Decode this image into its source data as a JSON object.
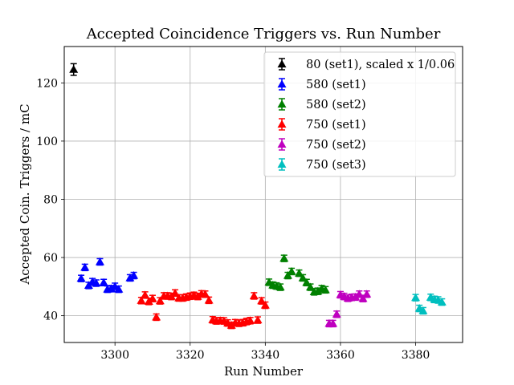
{
  "chart_data": {
    "type": "scatter",
    "title": "Accepted Coincidence Triggers vs. Run Number",
    "xlabel": "Run Number",
    "ylabel": "Accepted Coin. Triggers / mC",
    "xlim": [
      3286.5,
      3392.5
    ],
    "ylim": [
      30.8,
      132.5
    ],
    "xticks": [
      3300,
      3320,
      3340,
      3360,
      3380
    ],
    "yticks": [
      40,
      60,
      80,
      100,
      120
    ],
    "grid": true,
    "legend_position": "top-right",
    "series": [
      {
        "name": "80 (set1), scaled x 1/0.06",
        "color": "#000000",
        "points": [
          [
            3289,
            124.6
          ]
        ],
        "err": 2.0
      },
      {
        "name": "580 (set1)",
        "color": "#0000ff",
        "points": [
          [
            3291,
            52.8
          ],
          [
            3292,
            56.6
          ],
          [
            3293,
            50.4
          ],
          [
            3294,
            51.7
          ],
          [
            3295,
            51.2
          ],
          [
            3296,
            58.5
          ],
          [
            3297,
            51.4
          ],
          [
            3298,
            49.1
          ],
          [
            3299,
            49.3
          ],
          [
            3300,
            50.1
          ],
          [
            3301,
            49.1
          ],
          [
            3304,
            53.0
          ],
          [
            3305,
            53.8
          ]
        ],
        "err": 0.8
      },
      {
        "name": "580 (set2)",
        "color": "#008000",
        "points": [
          [
            3341,
            51.5
          ],
          [
            3342,
            50.5
          ],
          [
            3343,
            50.2
          ],
          [
            3344,
            49.8
          ],
          [
            3345,
            59.7
          ],
          [
            3346,
            53.8
          ],
          [
            3347,
            55.2
          ],
          [
            3349,
            54.6
          ],
          [
            3350,
            53.0
          ],
          [
            3351,
            51.4
          ],
          [
            3352,
            49.8
          ],
          [
            3353,
            48.2
          ],
          [
            3354,
            48.4
          ],
          [
            3355,
            49.3
          ],
          [
            3356,
            48.9
          ]
        ],
        "err": 0.8
      },
      {
        "name": "750 (set1)",
        "color": "#ff0000",
        "points": [
          [
            3307,
            45.2
          ],
          [
            3308,
            47.1
          ],
          [
            3309,
            44.9
          ],
          [
            3310,
            45.9
          ],
          [
            3311,
            39.5
          ],
          [
            3312,
            45.1
          ],
          [
            3313,
            46.8
          ],
          [
            3314,
            46.8
          ],
          [
            3315,
            46.6
          ],
          [
            3316,
            47.8
          ],
          [
            3317,
            46.1
          ],
          [
            3318,
            46.1
          ],
          [
            3319,
            46.4
          ],
          [
            3320,
            46.7
          ],
          [
            3321,
            47.0
          ],
          [
            3322,
            46.6
          ],
          [
            3323,
            47.5
          ],
          [
            3324,
            47.4
          ],
          [
            3325,
            45.3
          ],
          [
            3326,
            38.6
          ],
          [
            3327,
            38.2
          ],
          [
            3328,
            38.3
          ],
          [
            3329,
            38.2
          ],
          [
            3330,
            37.5
          ],
          [
            3331,
            36.7
          ],
          [
            3332,
            37.6
          ],
          [
            3333,
            37.4
          ],
          [
            3334,
            37.6
          ],
          [
            3335,
            38.0
          ],
          [
            3336,
            38.3
          ],
          [
            3337,
            46.8
          ],
          [
            3338,
            38.5
          ],
          [
            3339,
            45.1
          ],
          [
            3340,
            43.6
          ]
        ],
        "err": 0.8
      },
      {
        "name": "750 (set2)",
        "color": "#bf00bf",
        "points": [
          [
            3357,
            37.3
          ],
          [
            3358,
            37.3
          ],
          [
            3359,
            40.5
          ],
          [
            3360,
            47.2
          ],
          [
            3361,
            46.6
          ],
          [
            3362,
            46.0
          ],
          [
            3363,
            46.3
          ],
          [
            3364,
            46.4
          ],
          [
            3365,
            47.4
          ],
          [
            3366,
            45.9
          ],
          [
            3367,
            47.4
          ]
        ],
        "err": 0.8
      },
      {
        "name": "750 (set3)",
        "color": "#00bfbf",
        "points": [
          [
            3380,
            46.2
          ],
          [
            3381,
            42.5
          ],
          [
            3382,
            41.7
          ],
          [
            3384,
            46.3
          ],
          [
            3385,
            45.6
          ],
          [
            3386,
            45.4
          ],
          [
            3387,
            44.7
          ]
        ],
        "err": 0.8
      }
    ]
  }
}
